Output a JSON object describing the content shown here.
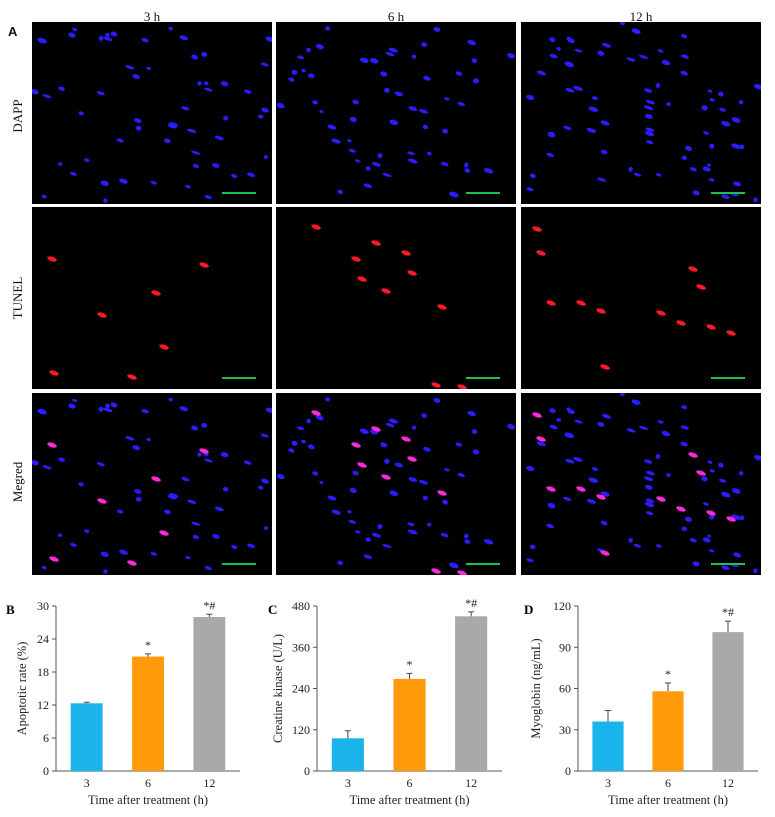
{
  "figure": {
    "panel_a_letter": "A",
    "columns": [
      "3 h",
      "6 h",
      "12 h"
    ],
    "rows": [
      "DAPP",
      "TUNEL",
      "Megred"
    ]
  },
  "colors": {
    "dapi": "#2a1dff",
    "tunel": "#ff1a2a",
    "merged": "#ff2ad8",
    "scale_bar": "#19c24a",
    "bar_3h": "#1ab3ea",
    "bar_6h": "#ff9a0a",
    "bar_12h": "#a9a9a9"
  },
  "chart_data": [
    {
      "type": "bar",
      "panel": "B",
      "categories": [
        "3",
        "6",
        "12"
      ],
      "values": [
        12.3,
        20.8,
        28.0
      ],
      "errors": [
        0.2,
        0.5,
        0.5
      ],
      "annotations": [
        "",
        "*",
        "*#"
      ],
      "ylabel": "Apoptotic rate (%)",
      "xlabel": "Time after treatment (h)",
      "ylim": [
        0,
        30
      ],
      "yticks": [
        0,
        6,
        12,
        18,
        24,
        30
      ]
    },
    {
      "type": "bar",
      "panel": "C",
      "categories": [
        "3",
        "6",
        "12"
      ],
      "values": [
        95,
        268,
        450
      ],
      "errors": [
        22,
        16,
        13
      ],
      "annotations": [
        "",
        "*",
        "*#"
      ],
      "ylabel": "Creatine kinase (U/L)",
      "xlabel": "Time after treatment (h)",
      "ylim": [
        0,
        480
      ],
      "yticks": [
        0,
        120,
        240,
        360,
        480
      ]
    },
    {
      "type": "bar",
      "panel": "D",
      "categories": [
        "3",
        "6",
        "12"
      ],
      "values": [
        36,
        58,
        101
      ],
      "errors": [
        8,
        6,
        8
      ],
      "annotations": [
        "",
        "*",
        "*#"
      ],
      "ylabel": "Myoglobin (ng/mL)",
      "xlabel": "Time after treatment (h)",
      "ylim": [
        0,
        120
      ],
      "yticks": [
        0,
        30,
        60,
        90,
        120
      ]
    }
  ]
}
